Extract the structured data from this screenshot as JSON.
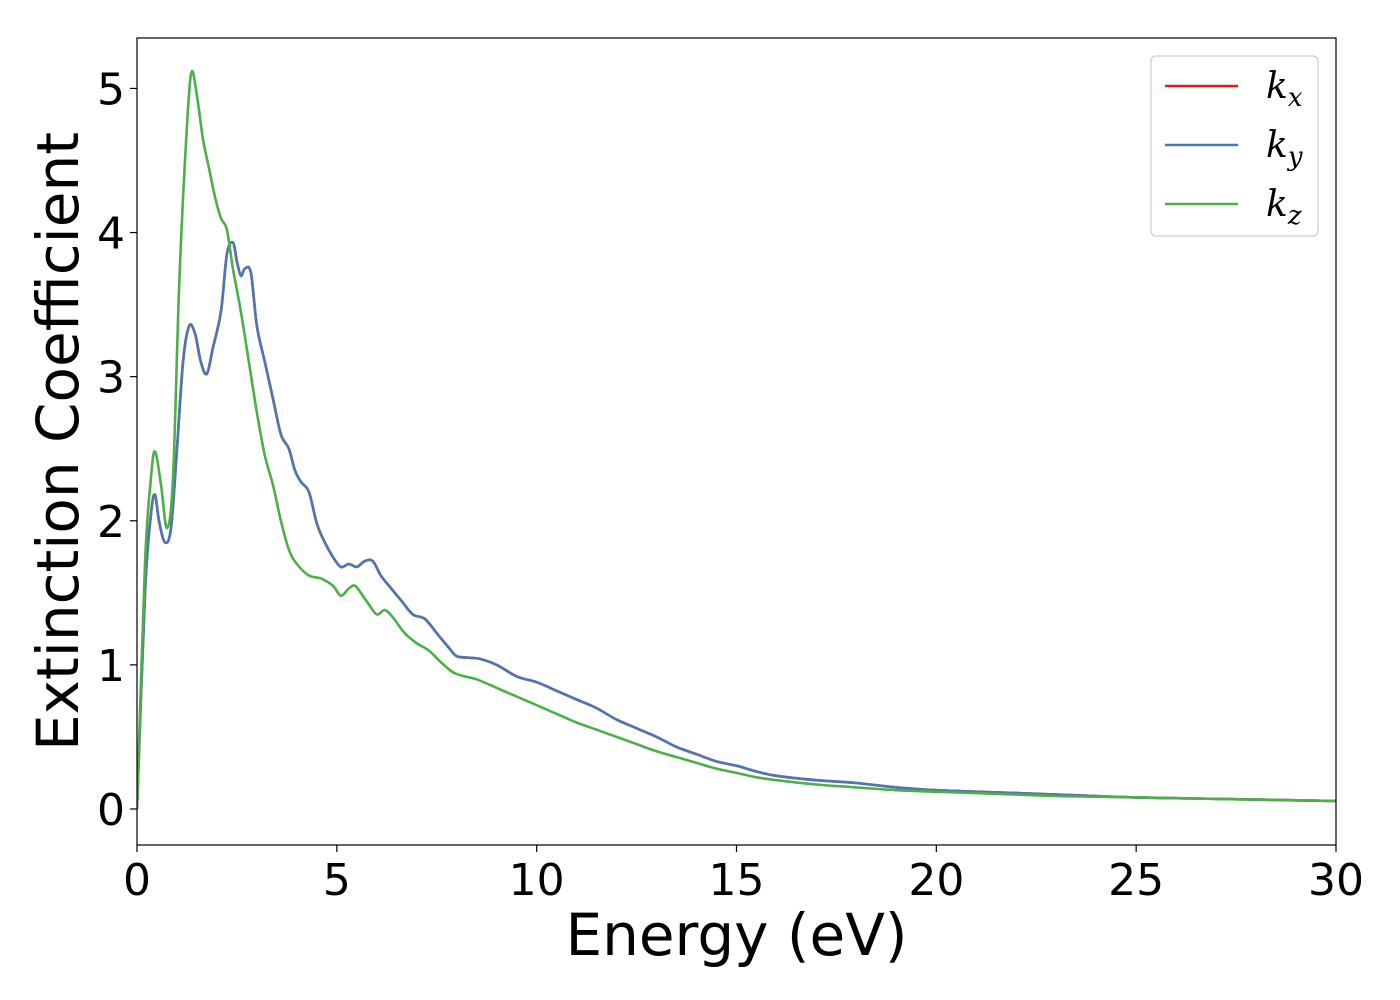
{
  "chart_data": {
    "type": "line",
    "xlabel": "Energy (eV)",
    "ylabel": "Extinction Coefficient",
    "xlim": [
      0,
      30
    ],
    "ylim": [
      -0.25,
      5.35
    ],
    "xticks": [
      0,
      5,
      10,
      15,
      20,
      25,
      30
    ],
    "yticks": [
      0,
      1,
      2,
      3,
      4,
      5
    ],
    "grid": false,
    "legend_placement": "top-right",
    "series": [
      {
        "name": "k_x",
        "label_base": "k",
        "label_sub": "x",
        "color": "#e41a1c",
        "x": [
          0,
          0.2,
          0.35,
          0.45,
          0.55,
          0.7,
          0.85,
          1.0,
          1.15,
          1.3,
          1.45,
          1.6,
          1.75,
          1.9,
          2.1,
          2.25,
          2.4,
          2.5,
          2.6,
          2.7,
          2.85,
          3.0,
          3.2,
          3.4,
          3.6,
          3.8,
          3.95,
          4.1,
          4.3,
          4.5,
          4.7,
          4.9,
          5.1,
          5.3,
          5.5,
          5.7,
          5.9,
          6.1,
          6.3,
          6.6,
          6.9,
          7.2,
          7.5,
          7.8,
          8.0,
          8.3,
          8.6,
          9.0,
          9.5,
          10.0,
          10.5,
          11.0,
          11.5,
          12.0,
          12.5,
          13.0,
          13.5,
          14.0,
          14.5,
          15.0,
          15.5,
          16.0,
          17.0,
          18.0,
          19.0,
          20.0,
          21.0,
          22.0,
          23.0,
          24.0,
          25.0,
          26.0,
          27.0,
          28.0,
          29.0,
          30.0
        ],
        "y": [
          0.0,
          1.5,
          2.05,
          2.18,
          2.0,
          1.85,
          1.95,
          2.5,
          3.1,
          3.35,
          3.3,
          3.1,
          3.02,
          3.2,
          3.45,
          3.85,
          3.93,
          3.8,
          3.7,
          3.75,
          3.72,
          3.35,
          3.1,
          2.85,
          2.6,
          2.5,
          2.35,
          2.27,
          2.2,
          1.98,
          1.85,
          1.75,
          1.68,
          1.7,
          1.68,
          1.72,
          1.72,
          1.62,
          1.55,
          1.45,
          1.35,
          1.32,
          1.22,
          1.12,
          1.06,
          1.05,
          1.04,
          1.0,
          0.92,
          0.88,
          0.82,
          0.76,
          0.7,
          0.62,
          0.56,
          0.5,
          0.43,
          0.38,
          0.33,
          0.3,
          0.26,
          0.23,
          0.2,
          0.18,
          0.15,
          0.13,
          0.12,
          0.11,
          0.1,
          0.09,
          0.08,
          0.075,
          0.07,
          0.065,
          0.06,
          0.055
        ]
      },
      {
        "name": "k_y",
        "label_base": "k",
        "label_sub": "y",
        "color": "#4a78b3",
        "x": [
          0,
          0.2,
          0.35,
          0.45,
          0.55,
          0.7,
          0.85,
          1.0,
          1.15,
          1.3,
          1.45,
          1.6,
          1.75,
          1.9,
          2.1,
          2.25,
          2.4,
          2.5,
          2.6,
          2.7,
          2.85,
          3.0,
          3.2,
          3.4,
          3.6,
          3.8,
          3.95,
          4.1,
          4.3,
          4.5,
          4.7,
          4.9,
          5.1,
          5.3,
          5.5,
          5.7,
          5.9,
          6.1,
          6.3,
          6.6,
          6.9,
          7.2,
          7.5,
          7.8,
          8.0,
          8.3,
          8.6,
          9.0,
          9.5,
          10.0,
          10.5,
          11.0,
          11.5,
          12.0,
          12.5,
          13.0,
          13.5,
          14.0,
          14.5,
          15.0,
          15.5,
          16.0,
          17.0,
          18.0,
          19.0,
          20.0,
          21.0,
          22.0,
          23.0,
          24.0,
          25.0,
          26.0,
          27.0,
          28.0,
          29.0,
          30.0
        ],
        "y": [
          0.0,
          1.5,
          2.05,
          2.18,
          2.0,
          1.85,
          1.95,
          2.5,
          3.1,
          3.35,
          3.3,
          3.1,
          3.02,
          3.2,
          3.45,
          3.85,
          3.93,
          3.8,
          3.7,
          3.75,
          3.72,
          3.35,
          3.1,
          2.85,
          2.6,
          2.5,
          2.35,
          2.27,
          2.2,
          1.98,
          1.85,
          1.75,
          1.68,
          1.7,
          1.68,
          1.72,
          1.72,
          1.62,
          1.55,
          1.45,
          1.35,
          1.32,
          1.22,
          1.12,
          1.06,
          1.05,
          1.04,
          1.0,
          0.92,
          0.88,
          0.82,
          0.76,
          0.7,
          0.62,
          0.56,
          0.5,
          0.43,
          0.38,
          0.33,
          0.3,
          0.26,
          0.23,
          0.2,
          0.18,
          0.15,
          0.13,
          0.12,
          0.11,
          0.1,
          0.09,
          0.08,
          0.075,
          0.07,
          0.065,
          0.06,
          0.055
        ]
      },
      {
        "name": "k_z",
        "label_base": "k",
        "label_sub": "z",
        "color": "#4daf4a",
        "x": [
          0,
          0.2,
          0.35,
          0.45,
          0.6,
          0.75,
          0.9,
          1.05,
          1.2,
          1.35,
          1.5,
          1.65,
          1.8,
          1.95,
          2.1,
          2.25,
          2.4,
          2.6,
          2.8,
          3.0,
          3.2,
          3.4,
          3.6,
          3.8,
          4.0,
          4.3,
          4.6,
          4.9,
          5.1,
          5.3,
          5.45,
          5.6,
          5.8,
          6.0,
          6.2,
          6.4,
          6.7,
          7.0,
          7.3,
          7.6,
          7.9,
          8.2,
          8.5,
          9.0,
          9.5,
          10.0,
          10.5,
          11.0,
          11.5,
          12.0,
          12.5,
          13.0,
          13.5,
          14.0,
          14.5,
          15.0,
          15.5,
          16.0,
          17.0,
          18.0,
          19.0,
          20.0,
          21.0,
          22.0,
          23.0,
          24.0,
          25.0,
          26.0,
          27.0,
          28.0,
          29.0,
          30.0
        ],
        "y": [
          0.0,
          1.7,
          2.3,
          2.48,
          2.25,
          1.95,
          2.3,
          3.6,
          4.5,
          5.1,
          4.95,
          4.65,
          4.45,
          4.25,
          4.1,
          4.02,
          3.75,
          3.45,
          3.1,
          2.75,
          2.45,
          2.25,
          2.0,
          1.8,
          1.7,
          1.62,
          1.6,
          1.55,
          1.48,
          1.53,
          1.55,
          1.5,
          1.42,
          1.35,
          1.38,
          1.33,
          1.22,
          1.15,
          1.1,
          1.02,
          0.95,
          0.92,
          0.9,
          0.84,
          0.78,
          0.72,
          0.66,
          0.6,
          0.55,
          0.5,
          0.45,
          0.4,
          0.36,
          0.32,
          0.28,
          0.25,
          0.22,
          0.2,
          0.17,
          0.15,
          0.13,
          0.12,
          0.11,
          0.1,
          0.09,
          0.085,
          0.08,
          0.075,
          0.07,
          0.065,
          0.06,
          0.055
        ]
      }
    ]
  }
}
